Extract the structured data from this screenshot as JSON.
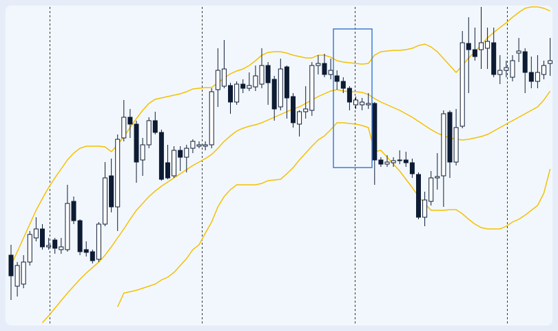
{
  "chart_data": {
    "type": "candlestick",
    "open": [
      110,
      65,
      68,
      100,
      135,
      148,
      122,
      132,
      118,
      118,
      188,
      160,
      118,
      115,
      104,
      155,
      225,
      180,
      280,
      310,
      300,
      248,
      270,
      305,
      288,
      244,
      225,
      262,
      252,
      265,
      268,
      268,
      270,
      350,
      355,
      356,
      332,
      358,
      352,
      354,
      358,
      385,
      365,
      325,
      383,
      340,
      300,
      318,
      320,
      385,
      388,
      372,
      370,
      362,
      352,
      328,
      328,
      328,
      330,
      248,
      242,
      244,
      247,
      248,
      244,
      227,
      165,
      188,
      222,
      225,
      317,
      245,
      297,
      417,
      408,
      408,
      410,
      418,
      372,
      378,
      368,
      403,
      405,
      375,
      362,
      372,
      388
    ],
    "high": [
      125,
      100,
      110,
      145,
      165,
      155,
      135,
      135,
      135,
      212,
      195,
      162,
      130,
      118,
      158,
      245,
      250,
      285,
      335,
      322,
      305,
      280,
      310,
      318,
      292,
      270,
      268,
      268,
      270,
      278,
      275,
      275,
      352,
      410,
      422,
      360,
      362,
      365,
      375,
      385,
      410,
      390,
      370,
      395,
      385,
      345,
      320,
      355,
      390,
      400,
      402,
      395,
      378,
      368,
      355,
      340,
      338,
      345,
      332,
      252,
      255,
      252,
      262,
      260,
      250,
      230,
      202,
      232,
      258,
      320,
      320,
      322,
      435,
      455,
      440,
      470,
      440,
      440,
      400,
      392,
      400,
      425,
      410,
      398,
      400,
      392,
      425
    ],
    "low": [
      45,
      50,
      62,
      95,
      130,
      118,
      118,
      112,
      112,
      115,
      155,
      110,
      108,
      98,
      100,
      152,
      172,
      145,
      275,
      280,
      215,
      225,
      265,
      285,
      218,
      220,
      222,
      232,
      230,
      258,
      265,
      262,
      265,
      325,
      352,
      315,
      328,
      345,
      348,
      348,
      352,
      328,
      305,
      320,
      308,
      295,
      282,
      308,
      312,
      372,
      368,
      365,
      350,
      345,
      320,
      322,
      320,
      322,
      212,
      238,
      238,
      238,
      242,
      238,
      222,
      162,
      152,
      182,
      205,
      180,
      222,
      240,
      294,
      345,
      392,
      380,
      380,
      368,
      358,
      368,
      362,
      390,
      345,
      352,
      352,
      365,
      370
    ],
    "close": [
      80,
      95,
      100,
      140,
      148,
      122,
      124,
      120,
      122,
      185,
      160,
      115,
      114,
      102,
      155,
      222,
      180,
      278,
      310,
      300,
      245,
      270,
      305,
      288,
      220,
      222,
      262,
      252,
      265,
      275,
      270,
      270,
      347,
      378,
      380,
      332,
      358,
      352,
      356,
      370,
      385,
      360,
      322,
      380,
      338,
      302,
      318,
      322,
      385,
      388,
      372,
      378,
      362,
      352,
      332,
      335,
      332,
      330,
      248,
      242,
      245,
      247,
      248,
      244,
      228,
      165,
      190,
      222,
      224,
      315,
      245,
      295,
      418,
      408,
      398,
      418,
      420,
      372,
      378,
      382,
      392,
      406,
      375,
      362,
      375,
      385,
      392
    ],
    "up_color": "#ffffff",
    "down_color": "#0d1b33",
    "series": [
      {
        "color": "#f5c000",
        "values": [
          95,
          115,
          135,
          155,
          175,
          192,
          208,
          222,
          235,
          248,
          258,
          265,
          268,
          268,
          268,
          267,
          260,
          270,
          282,
          295,
          308,
          320,
          330,
          336,
          338,
          340,
          342,
          344,
          347,
          351,
          352,
          353,
          353,
          360,
          367,
          373,
          377,
          380,
          385,
          392,
          400,
          404,
          405,
          405,
          403,
          400,
          398,
          396,
          396,
          400,
          400,
          397,
          392,
          390,
          389,
          388,
          387,
          388,
          400,
          405,
          406,
          407,
          407,
          408,
          410,
          414,
          416,
          412,
          405,
          395,
          385,
          375,
          385,
          396,
          405,
          415,
          425,
          433,
          440,
          447,
          455,
          462,
          468,
          470,
          470,
          468,
          464
        ]
      },
      {
        "color": "#f5c000",
        "values": [
          null,
          null,
          null,
          null,
          null,
          12,
          22,
          33,
          44,
          55,
          65,
          75,
          84,
          92,
          100,
          110,
          122,
          135,
          148,
          162,
          175,
          185,
          195,
          203,
          210,
          216,
          222,
          228,
          234,
          240,
          245,
          250,
          256,
          265,
          275,
          283,
          290,
          294,
          297,
          299,
          302,
          306,
          310,
          314,
          318,
          322,
          325,
          330,
          335,
          340,
          344,
          348,
          350,
          348,
          347,
          347,
          346,
          343,
          337,
          332,
          328,
          324,
          320,
          315,
          310,
          304,
          298,
          292,
          287,
          283,
          280,
          278,
          277,
          278,
          280,
          282,
          285,
          290,
          295,
          300,
          305,
          310,
          315,
          320,
          325,
          335,
          348
        ]
      },
      {
        "color": "#f5c000",
        "values": [
          null,
          null,
          null,
          null,
          null,
          null,
          null,
          null,
          null,
          null,
          null,
          null,
          null,
          null,
          null,
          null,
          null,
          35,
          55,
          57,
          59,
          62,
          65,
          68,
          74,
          78,
          85,
          95,
          105,
          118,
          125,
          142,
          158,
          180,
          195,
          205,
          212,
          212,
          212,
          212,
          214,
          218,
          219,
          220,
          228,
          237,
          248,
          258,
          268,
          277,
          283,
          292,
          302,
          302,
          301,
          300,
          298,
          295,
          260,
          262,
          252,
          242,
          232,
          220,
          208,
          195,
          185,
          175,
          175,
          175,
          176,
          176,
          170,
          162,
          155,
          150,
          148,
          148,
          148,
          152,
          158,
          162,
          168,
          175,
          182,
          200,
          235
        ]
      }
    ],
    "ylim": [
      10,
      470
    ]
  }
}
